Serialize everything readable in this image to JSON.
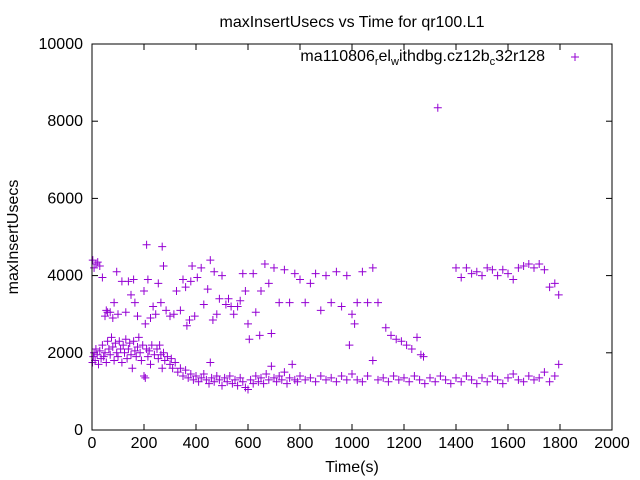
{
  "chart_data": {
    "type": "scatter",
    "title": "maxInsertUsecs vs Time for qr100.L1",
    "xlabel": "Time(s)",
    "ylabel": "maxInsertUsecs",
    "xlim": [
      0,
      2000
    ],
    "ylim": [
      0,
      10000
    ],
    "xticks": [
      "0",
      "200",
      "400",
      "600",
      "800",
      "1000",
      "1200",
      "1400",
      "1600",
      "1800",
      "2000"
    ],
    "yticks": [
      "0",
      "2000",
      "4000",
      "6000",
      "8000",
      "10000"
    ],
    "grid": false,
    "legend_position": "top-right",
    "series": [
      {
        "name": "ma110806_rel_withdbg.cz12b_c32r128",
        "legend_parts": [
          {
            "text": "ma110806",
            "sub": false
          },
          {
            "text": "r",
            "sub": true
          },
          {
            "text": "el",
            "sub": false
          },
          {
            "text": "w",
            "sub": true
          },
          {
            "text": "ithdbg.cz12b",
            "sub": false
          },
          {
            "text": "c",
            "sub": true
          },
          {
            "text": "32r128",
            "sub": false
          }
        ],
        "color": "#9400d3",
        "marker": "+",
        "points": [
          [
            2,
            1750
          ],
          [
            5,
            1900
          ],
          [
            8,
            2000
          ],
          [
            12,
            1800
          ],
          [
            15,
            2100
          ],
          [
            20,
            1950
          ],
          [
            25,
            1700
          ],
          [
            30,
            2050
          ],
          [
            35,
            1850
          ],
          [
            40,
            2200
          ],
          [
            45,
            1900
          ],
          [
            50,
            2000
          ],
          [
            55,
            1750
          ],
          [
            60,
            2300
          ],
          [
            65,
            2100
          ],
          [
            70,
            1950
          ],
          [
            75,
            2400
          ],
          [
            80,
            2150
          ],
          [
            85,
            1800
          ],
          [
            90,
            2250
          ],
          [
            95,
            2000
          ],
          [
            100,
            1900
          ],
          [
            105,
            2300
          ],
          [
            110,
            2100
          ],
          [
            115,
            1750
          ],
          [
            120,
            2200
          ],
          [
            125,
            2000
          ],
          [
            130,
            2350
          ],
          [
            135,
            1850
          ],
          [
            140,
            2100
          ],
          [
            145,
            2250
          ],
          [
            150,
            1950
          ],
          [
            155,
            1600
          ],
          [
            160,
            2300
          ],
          [
            165,
            2050
          ],
          [
            170,
            1900
          ],
          [
            175,
            2150
          ],
          [
            180,
            2400
          ],
          [
            185,
            2000
          ],
          [
            190,
            1800
          ],
          [
            195,
            2200
          ],
          [
            200,
            1400
          ],
          [
            205,
            1350
          ],
          [
            210,
            2100
          ],
          [
            215,
            1900
          ],
          [
            220,
            2050
          ],
          [
            225,
            1700
          ],
          [
            230,
            2200
          ],
          [
            240,
            1950
          ],
          [
            250,
            2100
          ],
          [
            255,
            1850
          ],
          [
            260,
            2200
          ],
          [
            265,
            1950
          ],
          [
            270,
            1600
          ],
          [
            275,
            2000
          ],
          [
            280,
            1800
          ],
          [
            290,
            1900
          ],
          [
            300,
            1700
          ],
          [
            305,
            1850
          ],
          [
            310,
            1600
          ],
          [
            320,
            1750
          ],
          [
            330,
            1500
          ],
          [
            340,
            1600
          ],
          [
            350,
            1400
          ],
          [
            360,
            1550
          ],
          [
            370,
            1350
          ],
          [
            380,
            1450
          ],
          [
            390,
            1300
          ],
          [
            400,
            1400
          ],
          [
            410,
            1250
          ],
          [
            420,
            1350
          ],
          [
            430,
            1450
          ],
          [
            440,
            1300
          ],
          [
            450,
            1200
          ],
          [
            455,
            1750
          ],
          [
            460,
            1350
          ],
          [
            470,
            1250
          ],
          [
            480,
            1400
          ],
          [
            490,
            1300
          ],
          [
            500,
            1150
          ],
          [
            510,
            1350
          ],
          [
            520,
            1250
          ],
          [
            530,
            1400
          ],
          [
            540,
            1200
          ],
          [
            550,
            1300
          ],
          [
            560,
            1150
          ],
          [
            570,
            1350
          ],
          [
            580,
            1250
          ],
          [
            590,
            1100
          ],
          [
            600,
            1050
          ],
          [
            610,
            1300
          ],
          [
            620,
            1200
          ],
          [
            630,
            1400
          ],
          [
            640,
            1250
          ],
          [
            650,
            1350
          ],
          [
            660,
            1200
          ],
          [
            670,
            1450
          ],
          [
            680,
            1300
          ],
          [
            690,
            1650
          ],
          [
            700,
            1350
          ],
          [
            710,
            1250
          ],
          [
            720,
            1400
          ],
          [
            730,
            1300
          ],
          [
            740,
            1500
          ],
          [
            750,
            1200
          ],
          [
            760,
            1350
          ],
          [
            770,
            1700
          ],
          [
            780,
            1300
          ],
          [
            790,
            1250
          ],
          [
            800,
            1400
          ],
          [
            820,
            1300
          ],
          [
            840,
            1350
          ],
          [
            860,
            1250
          ],
          [
            880,
            1400
          ],
          [
            900,
            1300
          ],
          [
            920,
            1350
          ],
          [
            940,
            1250
          ],
          [
            960,
            1400
          ],
          [
            980,
            1300
          ],
          [
            1000,
            1450
          ],
          [
            1020,
            1300
          ],
          [
            1040,
            1250
          ],
          [
            1060,
            1400
          ],
          [
            1080,
            1800
          ],
          [
            1100,
            1300
          ],
          [
            1120,
            1350
          ],
          [
            1140,
            1250
          ],
          [
            1160,
            1400
          ],
          [
            1180,
            1300
          ],
          [
            1200,
            1350
          ],
          [
            1220,
            1250
          ],
          [
            1240,
            1400
          ],
          [
            1260,
            1300
          ],
          [
            1280,
            1200
          ],
          [
            1300,
            1350
          ],
          [
            1320,
            1250
          ],
          [
            1340,
            1400
          ],
          [
            1360,
            1300
          ],
          [
            1380,
            1200
          ],
          [
            1400,
            1350
          ],
          [
            1420,
            1250
          ],
          [
            1440,
            1400
          ],
          [
            1460,
            1300
          ],
          [
            1480,
            1200
          ],
          [
            1500,
            1350
          ],
          [
            1520,
            1250
          ],
          [
            1540,
            1400
          ],
          [
            1560,
            1300
          ],
          [
            1580,
            1200
          ],
          [
            1600,
            1350
          ],
          [
            1620,
            1450
          ],
          [
            1640,
            1300
          ],
          [
            1660,
            1250
          ],
          [
            1680,
            1400
          ],
          [
            1700,
            1300
          ],
          [
            1720,
            1350
          ],
          [
            1740,
            1500
          ],
          [
            1760,
            1250
          ],
          [
            1780,
            1400
          ],
          [
            1795,
            1700
          ],
          [
            3,
            4400
          ],
          [
            8,
            4200
          ],
          [
            15,
            4300
          ],
          [
            22,
            4350
          ],
          [
            30,
            4250
          ],
          [
            40,
            3950
          ],
          [
            50,
            2950
          ],
          [
            55,
            3100
          ],
          [
            60,
            3050
          ],
          [
            70,
            3050
          ],
          [
            80,
            2900
          ],
          [
            85,
            3300
          ],
          [
            95,
            4100
          ],
          [
            100,
            3000
          ],
          [
            115,
            3850
          ],
          [
            130,
            3050
          ],
          [
            140,
            3850
          ],
          [
            150,
            3500
          ],
          [
            160,
            3900
          ],
          [
            165,
            3300
          ],
          [
            175,
            2950
          ],
          [
            200,
            3600
          ],
          [
            205,
            2750
          ],
          [
            210,
            4800
          ],
          [
            215,
            3900
          ],
          [
            225,
            2900
          ],
          [
            235,
            3200
          ],
          [
            245,
            3000
          ],
          [
            255,
            3800
          ],
          [
            265,
            3300
          ],
          [
            270,
            4750
          ],
          [
            275,
            4250
          ],
          [
            285,
            3100
          ],
          [
            300,
            2950
          ],
          [
            315,
            3000
          ],
          [
            325,
            3600
          ],
          [
            340,
            3100
          ],
          [
            350,
            3900
          ],
          [
            360,
            3700
          ],
          [
            365,
            2700
          ],
          [
            375,
            2850
          ],
          [
            380,
            3850
          ],
          [
            385,
            4250
          ],
          [
            395,
            2950
          ],
          [
            405,
            3950
          ],
          [
            420,
            4200
          ],
          [
            430,
            3250
          ],
          [
            445,
            3650
          ],
          [
            455,
            4400
          ],
          [
            465,
            2850
          ],
          [
            470,
            4100
          ],
          [
            480,
            3000
          ],
          [
            490,
            3400
          ],
          [
            500,
            4000
          ],
          [
            515,
            3250
          ],
          [
            525,
            3400
          ],
          [
            535,
            3200
          ],
          [
            545,
            3000
          ],
          [
            560,
            3200
          ],
          [
            570,
            3350
          ],
          [
            580,
            4050
          ],
          [
            590,
            3600
          ],
          [
            600,
            2750
          ],
          [
            605,
            2350
          ],
          [
            620,
            4050
          ],
          [
            630,
            3050
          ],
          [
            645,
            2450
          ],
          [
            650,
            3600
          ],
          [
            665,
            4300
          ],
          [
            680,
            3800
          ],
          [
            690,
            2500
          ],
          [
            700,
            4200
          ],
          [
            720,
            3300
          ],
          [
            740,
            4150
          ],
          [
            760,
            3300
          ],
          [
            780,
            4050
          ],
          [
            800,
            3900
          ],
          [
            820,
            3300
          ],
          [
            840,
            3800
          ],
          [
            860,
            4050
          ],
          [
            880,
            3100
          ],
          [
            900,
            4000
          ],
          [
            920,
            3300
          ],
          [
            940,
            4100
          ],
          [
            960,
            3200
          ],
          [
            980,
            4000
          ],
          [
            990,
            2200
          ],
          [
            1000,
            3000
          ],
          [
            1010,
            2750
          ],
          [
            1020,
            3300
          ],
          [
            1040,
            4100
          ],
          [
            1060,
            3300
          ],
          [
            1080,
            4200
          ],
          [
            1100,
            3300
          ],
          [
            1130,
            2650
          ],
          [
            1150,
            2450
          ],
          [
            1170,
            2350
          ],
          [
            1190,
            2300
          ],
          [
            1210,
            2200
          ],
          [
            1230,
            2100
          ],
          [
            1250,
            2400
          ],
          [
            1265,
            1950
          ],
          [
            1275,
            1900
          ],
          [
            1330,
            8350
          ],
          [
            1400,
            4200
          ],
          [
            1420,
            3950
          ],
          [
            1440,
            4200
          ],
          [
            1460,
            4050
          ],
          [
            1480,
            4100
          ],
          [
            1500,
            4000
          ],
          [
            1520,
            4200
          ],
          [
            1540,
            4150
          ],
          [
            1560,
            4000
          ],
          [
            1580,
            4150
          ],
          [
            1600,
            4050
          ],
          [
            1620,
            3900
          ],
          [
            1640,
            4200
          ],
          [
            1660,
            4250
          ],
          [
            1680,
            4300
          ],
          [
            1700,
            4200
          ],
          [
            1720,
            4300
          ],
          [
            1740,
            4150
          ],
          [
            1760,
            3700
          ],
          [
            1780,
            3800
          ],
          [
            1795,
            3500
          ]
        ]
      }
    ]
  }
}
